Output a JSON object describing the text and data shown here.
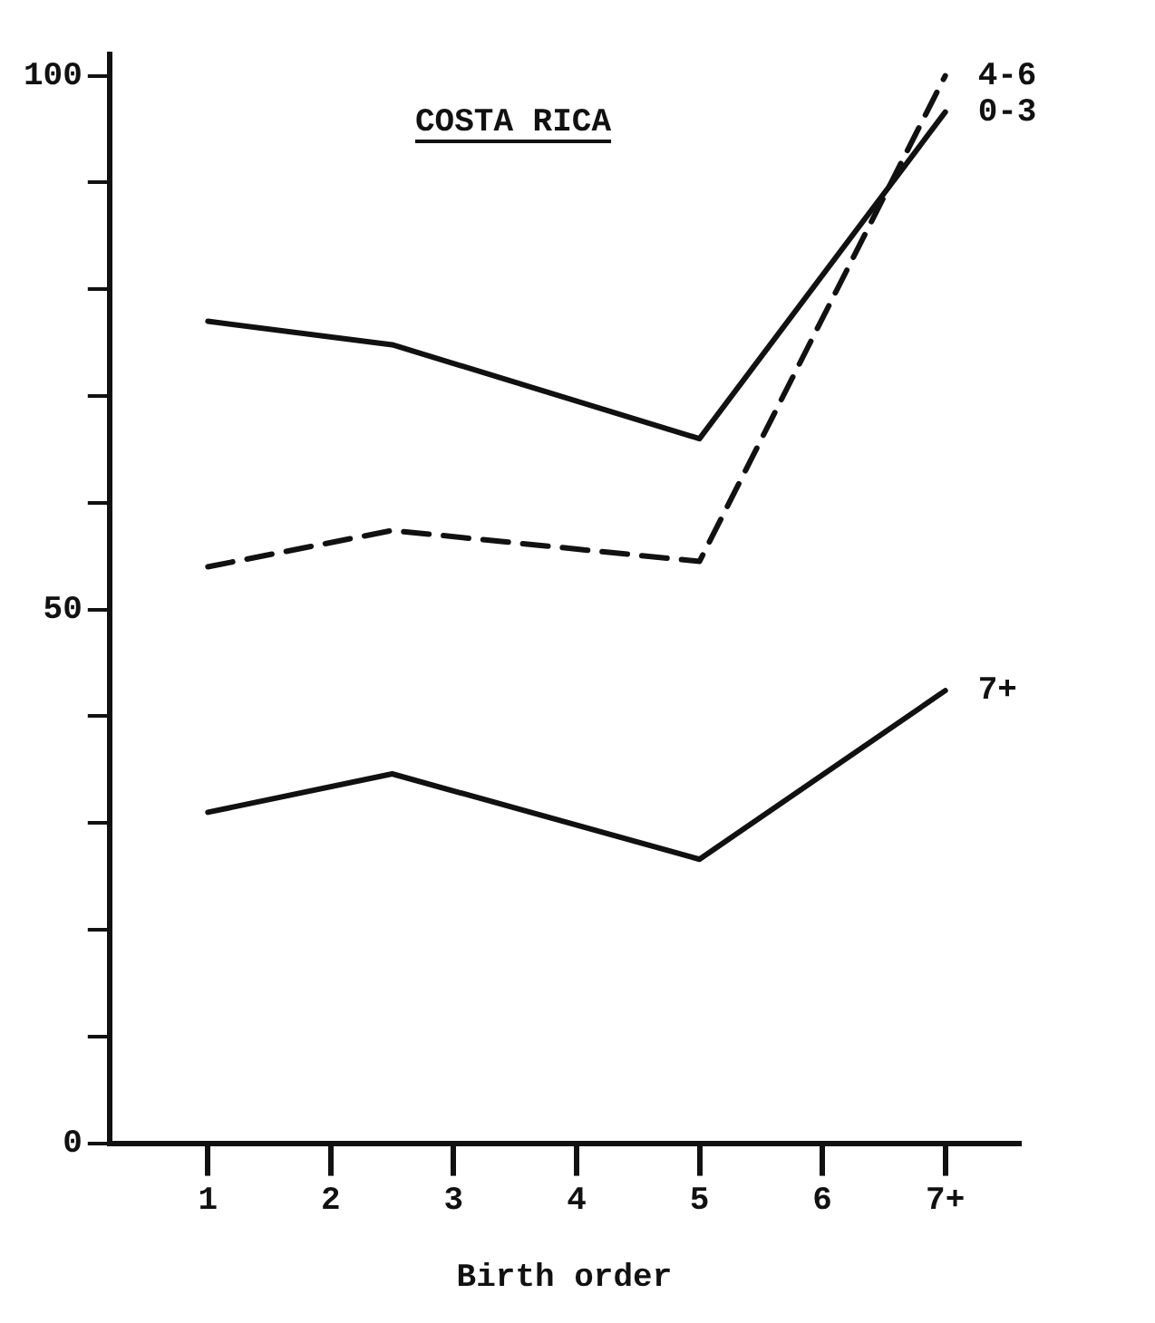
{
  "chart_data": {
    "type": "line",
    "title": "COSTA RICA",
    "xlabel": "Birth order",
    "x": [
      1,
      2.5,
      5,
      7
    ],
    "series": [
      {
        "name": "4-6",
        "color": "#111111",
        "line_style": "dashed",
        "values": [
          54,
          57.4,
          54.5,
          100
        ]
      },
      {
        "name": "0-3",
        "color": "#111111",
        "line_style": "solid",
        "values": [
          77,
          74.8,
          66,
          96.6
        ]
      },
      {
        "name": "7+",
        "color": "#111111",
        "line_style": "solid",
        "values": [
          31,
          34.6,
          26.6,
          42.4
        ]
      }
    ],
    "xlim": [
      0.2,
      7.6
    ],
    "xticks": [
      1,
      2,
      3,
      4,
      5,
      6,
      {
        "value": 7,
        "label": "7+"
      }
    ],
    "ylim": [
      0,
      102
    ],
    "yticks": [
      0,
      {
        "value": 10,
        "label": null
      },
      {
        "value": 20,
        "label": null
      },
      {
        "value": 30,
        "label": null
      },
      {
        "value": 40,
        "label": null
      },
      50,
      {
        "value": 60,
        "label": null
      },
      {
        "value": 70,
        "label": null
      },
      {
        "value": 80,
        "label": null
      },
      {
        "value": 90,
        "label": null
      },
      100
    ],
    "grid": false,
    "legend": false,
    "marker": "none"
  }
}
